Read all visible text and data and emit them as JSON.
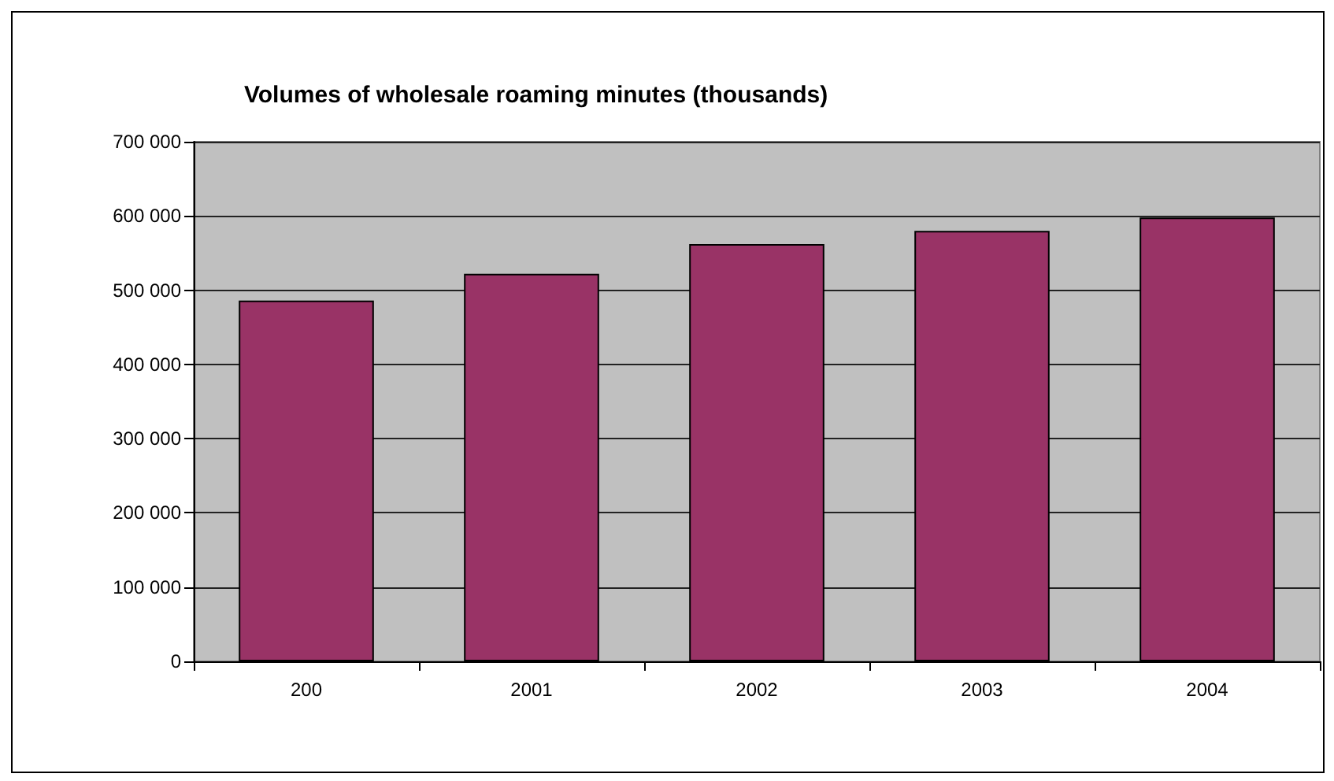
{
  "chart_data": {
    "type": "bar",
    "title": "Volumes of wholesale roaming minutes (thousands)",
    "categories": [
      "200",
      "2001",
      "2002",
      "2003",
      "2004"
    ],
    "values": [
      486000,
      522000,
      562000,
      580000,
      598000
    ],
    "color": "#993366",
    "ylim": [
      0,
      700000
    ],
    "yticks": [
      {
        "value": 0,
        "label": "0"
      },
      {
        "value": 100000,
        "label": "100 000"
      },
      {
        "value": 200000,
        "label": "200 000"
      },
      {
        "value": 300000,
        "label": "300 000"
      },
      {
        "value": 400000,
        "label": "400 000"
      },
      {
        "value": 500000,
        "label": "500 000"
      },
      {
        "value": 600000,
        "label": "600 000"
      },
      {
        "value": 700000,
        "label": "700 000"
      }
    ],
    "grid": "y"
  }
}
